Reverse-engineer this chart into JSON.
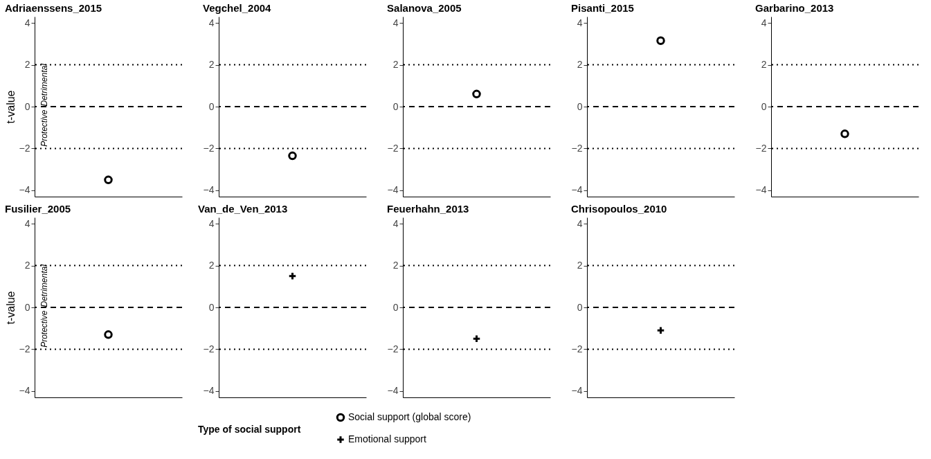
{
  "chart_data": [
    {
      "type": "scatter",
      "title": "Adriaenssens_2015",
      "ylabel": "t-value",
      "categories": [
        null
      ],
      "ylim": [
        -4.3,
        4.3
      ],
      "yticks": [
        -4,
        -2,
        0,
        2,
        4
      ],
      "tick_labels": "y",
      "grid": false,
      "annotations": [
        "Detrimental",
        "Protective"
      ],
      "ref_lines": [
        {
          "axis": "y",
          "value": 2,
          "line_style": "dotted"
        },
        {
          "axis": "y",
          "value": 0,
          "line_style": "dashed"
        },
        {
          "axis": "y",
          "value": -2,
          "line_style": "dotted"
        }
      ],
      "series": [
        {
          "name": "Social support (global score)",
          "color": "#000000",
          "marker": "circle",
          "values": [
            -3.5
          ]
        }
      ]
    },
    {
      "type": "scatter",
      "title": "Vegchel_2004",
      "categories": [
        null
      ],
      "ylim": [
        -4.3,
        4.3
      ],
      "yticks": [
        -4,
        -2,
        0,
        2,
        4
      ],
      "tick_labels": "y",
      "grid": false,
      "ref_lines": [
        {
          "axis": "y",
          "value": 2,
          "line_style": "dotted"
        },
        {
          "axis": "y",
          "value": 0,
          "line_style": "dashed"
        },
        {
          "axis": "y",
          "value": -2,
          "line_style": "dotted"
        }
      ],
      "series": [
        {
          "color": "#000000",
          "marker": "circle",
          "values": [
            -2.35
          ]
        }
      ]
    },
    {
      "type": "scatter",
      "title": "Salanova_2005",
      "categories": [
        null
      ],
      "ylim": [
        -4.3,
        4.3
      ],
      "yticks": [
        -4,
        -2,
        0,
        2,
        4
      ],
      "tick_labels": "y",
      "grid": false,
      "ref_lines": [
        {
          "axis": "y",
          "value": 2,
          "line_style": "dotted"
        },
        {
          "axis": "y",
          "value": 0,
          "line_style": "dashed"
        },
        {
          "axis": "y",
          "value": -2,
          "line_style": "dotted"
        }
      ],
      "series": [
        {
          "color": "#000000",
          "marker": "circle",
          "values": [
            0.6
          ]
        }
      ]
    },
    {
      "type": "scatter",
      "title": "Pisanti_2015",
      "categories": [
        null
      ],
      "ylim": [
        -4.3,
        4.3
      ],
      "yticks": [
        -4,
        -2,
        0,
        2,
        4
      ],
      "tick_labels": "y",
      "grid": false,
      "ref_lines": [
        {
          "axis": "y",
          "value": 2,
          "line_style": "dotted"
        },
        {
          "axis": "y",
          "value": 0,
          "line_style": "dashed"
        },
        {
          "axis": "y",
          "value": -2,
          "line_style": "dotted"
        }
      ],
      "series": [
        {
          "color": "#000000",
          "marker": "circle",
          "values": [
            3.15
          ]
        }
      ]
    },
    {
      "type": "scatter",
      "title": "Garbarino_2013",
      "categories": [
        null
      ],
      "ylim": [
        -4.3,
        4.3
      ],
      "yticks": [
        -4,
        -2,
        0,
        2,
        4
      ],
      "tick_labels": "y",
      "grid": false,
      "ref_lines": [
        {
          "axis": "y",
          "value": 2,
          "line_style": "dotted"
        },
        {
          "axis": "y",
          "value": 0,
          "line_style": "dashed"
        },
        {
          "axis": "y",
          "value": -2,
          "line_style": "dotted"
        }
      ],
      "series": [
        {
          "color": "#000000",
          "marker": "circle",
          "values": [
            -1.3
          ]
        }
      ]
    },
    {
      "type": "scatter",
      "title": "Fusilier_2005",
      "ylabel": "t-value",
      "categories": [
        null
      ],
      "ylim": [
        -4.3,
        4.3
      ],
      "yticks": [
        -4,
        -2,
        0,
        2,
        4
      ],
      "tick_labels": "y",
      "grid": false,
      "annotations": [
        "Detrimental",
        "Protective"
      ],
      "ref_lines": [
        {
          "axis": "y",
          "value": 2,
          "line_style": "dotted"
        },
        {
          "axis": "y",
          "value": 0,
          "line_style": "dashed"
        },
        {
          "axis": "y",
          "value": -2,
          "line_style": "dotted"
        }
      ],
      "series": [
        {
          "color": "#000000",
          "marker": "circle",
          "values": [
            -1.3
          ]
        }
      ]
    },
    {
      "type": "scatter",
      "title": "Van_de_Ven_2013",
      "categories": [
        null
      ],
      "ylim": [
        -4.3,
        4.3
      ],
      "yticks": [
        -4,
        -2,
        0,
        2,
        4
      ],
      "tick_labels": "y",
      "grid": false,
      "legend": "bottom",
      "legend_title": "Type of social support",
      "ref_lines": [
        {
          "axis": "y",
          "value": 2,
          "line_style": "dotted"
        },
        {
          "axis": "y",
          "value": 0,
          "line_style": "dashed"
        },
        {
          "axis": "y",
          "value": -2,
          "line_style": "dotted"
        }
      ],
      "series": [
        {
          "name": "Emotional support",
          "color": "#000000",
          "marker": "cross",
          "values": [
            1.5
          ]
        }
      ]
    },
    {
      "type": "scatter",
      "title": "Feuerhahn_2013",
      "categories": [
        null
      ],
      "ylim": [
        -4.3,
        4.3
      ],
      "yticks": [
        -4,
        -2,
        0,
        2,
        4
      ],
      "tick_labels": "y",
      "grid": false,
      "ref_lines": [
        {
          "axis": "y",
          "value": 2,
          "line_style": "dotted"
        },
        {
          "axis": "y",
          "value": 0,
          "line_style": "dashed"
        },
        {
          "axis": "y",
          "value": -2,
          "line_style": "dotted"
        }
      ],
      "series": [
        {
          "color": "#000000",
          "marker": "cross",
          "values": [
            -1.5
          ]
        }
      ]
    },
    {
      "type": "scatter",
      "title": "Chrisopoulos_2010",
      "categories": [
        null
      ],
      "ylim": [
        -4.3,
        4.3
      ],
      "yticks": [
        -4,
        -2,
        0,
        2,
        4
      ],
      "tick_labels": "y",
      "grid": false,
      "ref_lines": [
        {
          "axis": "y",
          "value": 2,
          "line_style": "dotted"
        },
        {
          "axis": "y",
          "value": 0,
          "line_style": "dashed"
        },
        {
          "axis": "y",
          "value": -2,
          "line_style": "dotted"
        }
      ],
      "series": [
        {
          "color": "#000000",
          "marker": "cross",
          "values": [
            -1.1
          ]
        }
      ]
    }
  ]
}
